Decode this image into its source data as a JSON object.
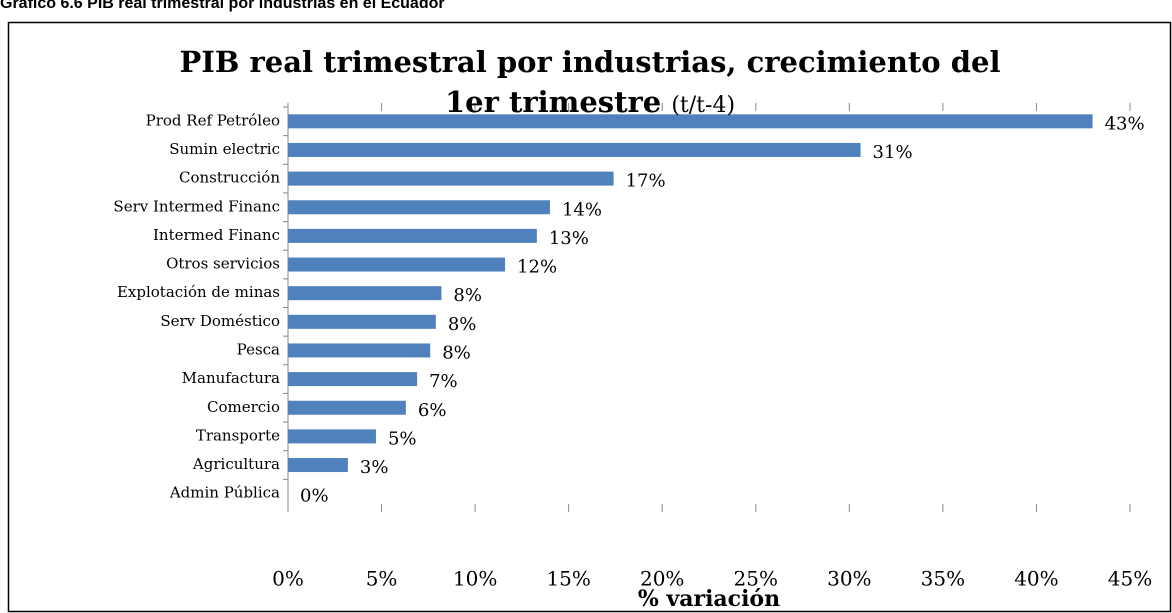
{
  "caption": "Gráfico 6.6 PIB real trimestral por industrias en el Ecuador",
  "chart_data": {
    "type": "barh",
    "title": "PIB real trimestral por industrias, crecimiento del 1er trimestre",
    "subtitle": "(t/t-4)",
    "x_label": "% variación",
    "categories": [
      "Prod Ref Petróleo",
      "Sumin electric",
      "Construcción",
      "Serv Intermed Financ",
      "Intermed Financ",
      "Otros servicios",
      "Explotación de minas",
      "Serv Doméstico",
      "Pesca",
      "Manufactura",
      "Comercio",
      "Transporte",
      "Agricultura",
      "Admin Pública"
    ],
    "values": [
      43.0,
      30.6,
      17.4,
      14.0,
      13.3,
      11.6,
      8.2,
      7.9,
      7.6,
      6.9,
      6.3,
      4.7,
      3.2,
      0
    ],
    "value_labels": [
      "43%",
      "31%",
      "17%",
      "14%",
      "13%",
      "12%",
      "8%",
      "8%",
      "8%",
      "7%",
      "6%",
      "5%",
      "3%",
      "0%"
    ],
    "color": "#4f81bd",
    "xlim": [
      0,
      45
    ],
    "xticks": [
      {
        "value": 0,
        "label": "0%"
      },
      {
        "value": 5,
        "label": "5%"
      },
      {
        "value": 10,
        "label": "10%"
      },
      {
        "value": 15,
        "label": "15%"
      },
      {
        "value": 20,
        "label": "20%"
      },
      {
        "value": 25,
        "label": "25%"
      },
      {
        "value": 30,
        "label": "30%"
      },
      {
        "value": 35,
        "label": "35%"
      },
      {
        "value": 40,
        "label": "40%"
      },
      {
        "value": 45,
        "label": "45%"
      }
    ]
  }
}
